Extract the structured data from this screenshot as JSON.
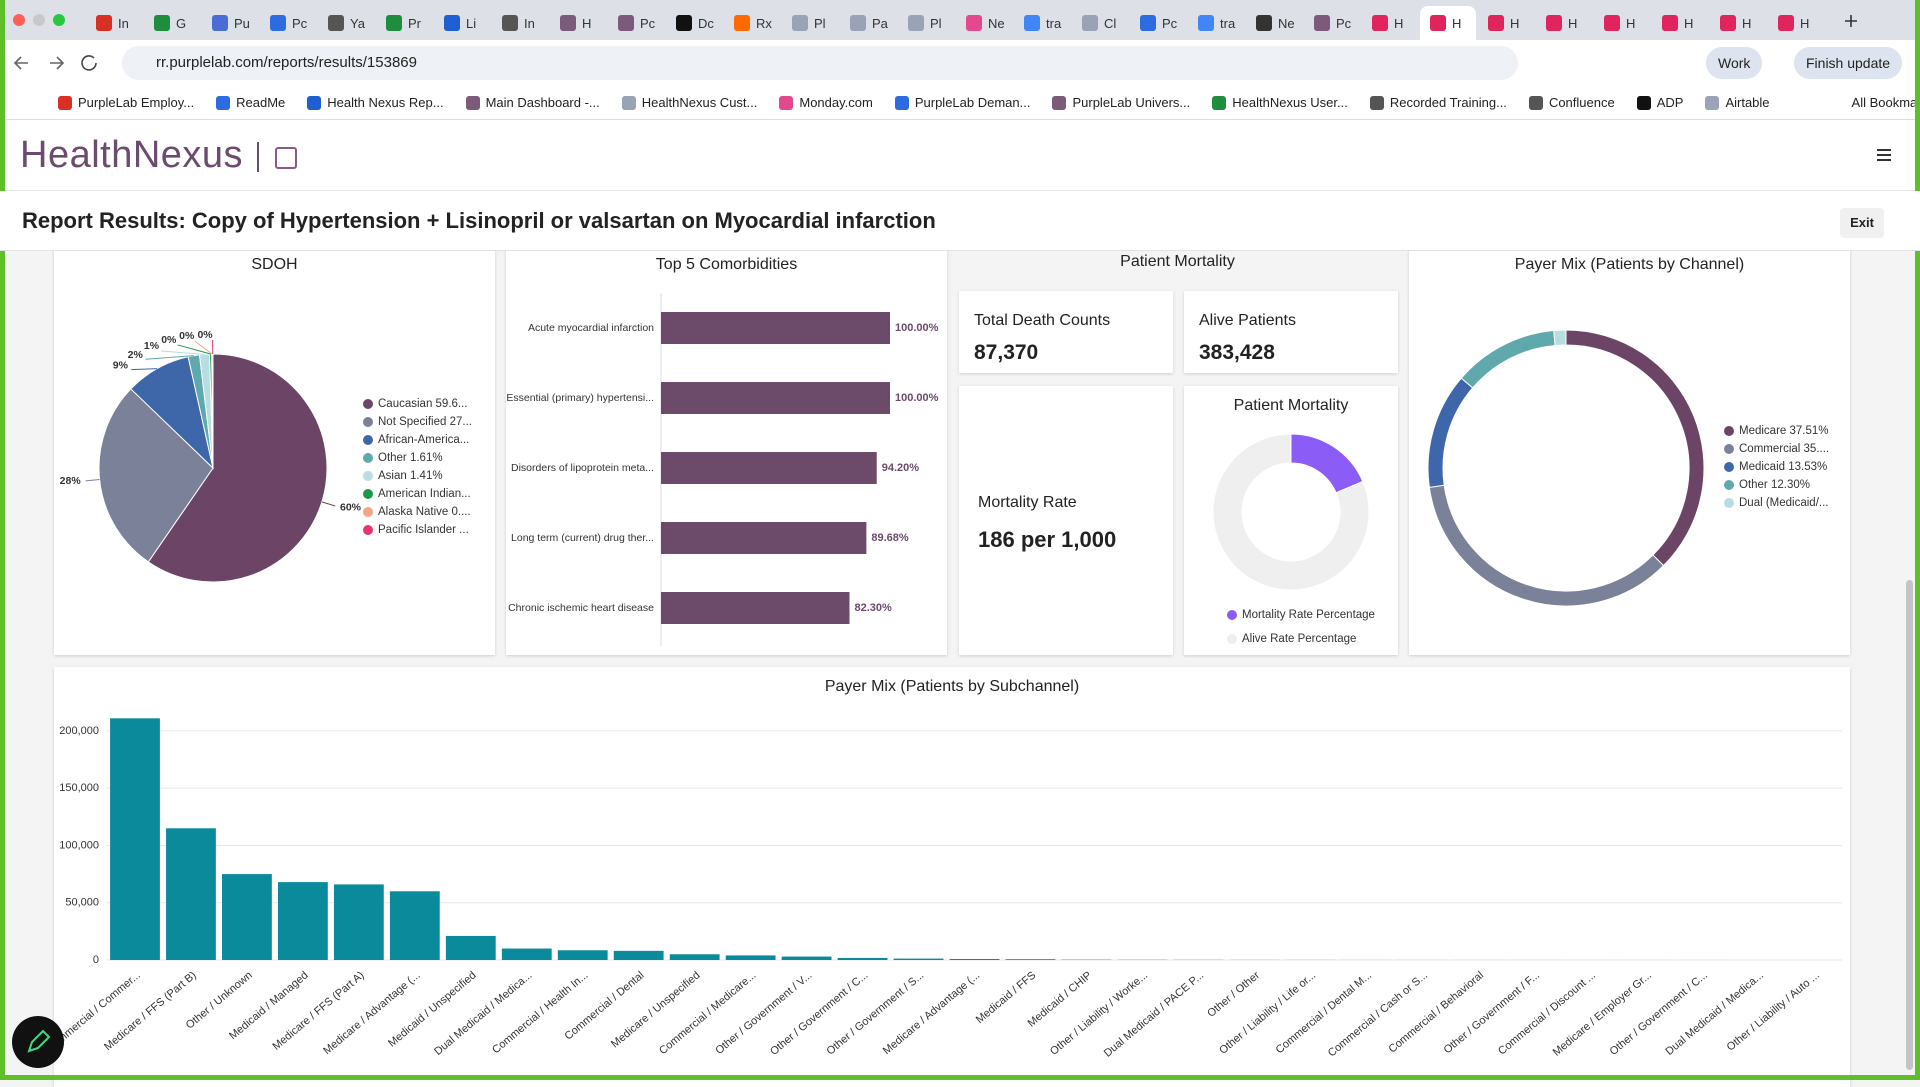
{
  "browser": {
    "tabs": [
      "In",
      "G",
      "Pu",
      "Pc",
      "Ya",
      "Pr",
      "Li",
      "In",
      "H",
      "Pc",
      "Dc",
      "Rx",
      "Pl",
      "Pa",
      "Pl",
      "Ne",
      "tra",
      "Cl",
      "Pc",
      "tra",
      "Ne",
      "Pc",
      "H",
      "H",
      "H",
      "H",
      "H",
      "H",
      "H",
      "H"
    ],
    "active_tab": 23,
    "url": "rr.purplelab.com/reports/results/153869",
    "profile": "Work",
    "update_button": "Finish update",
    "bookmarks": [
      "PurpleLab Employ...",
      "ReadMe",
      "Health Nexus Rep...",
      "Main Dashboard -...",
      "HealthNexus Cust...",
      "Monday.com",
      "PurpleLab Deman...",
      "PurpleLab Univers...",
      "HealthNexus User...",
      "Recorded Training...",
      "Confluence",
      "ADP",
      "Airtable"
    ],
    "all_bookmarks": "All Bookmarks"
  },
  "app": {
    "logo": "HealthNexus",
    "report_title": "Report Results: Copy of Hypertension + Lisinopril or valsartan on Myocardial infarction",
    "exit": "Exit"
  },
  "mortality_stats": {
    "title": "Patient Mortality",
    "cards": [
      {
        "label": "Total Death Counts",
        "value": "87,370"
      },
      {
        "label": "Alive Patients",
        "value": "383,428"
      },
      {
        "label": "Mortality Rate",
        "value": "186 per 1,000"
      }
    ]
  },
  "chart_data": [
    {
      "type": "pie",
      "title": "SDOH",
      "categories": [
        "Caucasian 59.6...",
        "Not Specified 27...",
        "African-America...",
        "Other 1.61%",
        "Asian 1.41%",
        "American Indian...",
        "Alaska Native 0....",
        "Pacific Islander ..."
      ],
      "values": [
        59.6,
        27.6,
        9.3,
        1.61,
        1.41,
        0.3,
        0.1,
        0.08
      ],
      "value_labels": [
        "60%",
        "28%",
        "9%",
        "2%",
        "1%",
        "0%",
        "0%",
        "0%"
      ],
      "colors": [
        "#6b4466",
        "#7a8199",
        "#3d67a8",
        "#5fa9ad",
        "#b7dde0",
        "#1a9850",
        "#f4a582",
        "#e8336d"
      ]
    },
    {
      "type": "bar",
      "orientation": "horizontal",
      "title": "Top 5 Comorbidities",
      "categories": [
        "Acute myocardial infarction",
        "Essential (primary) hypertensi...",
        "Disorders of lipoprotein meta...",
        "Long term (current) drug ther...",
        "Chronic ischemic heart disease"
      ],
      "values": [
        100,
        100,
        94.2,
        89.68,
        82.3
      ],
      "value_labels": [
        "100.00%",
        "100.00%",
        "94.20%",
        "89.68%",
        "82.30%"
      ],
      "color": "#6b4a6a",
      "xlim": [
        0,
        100
      ]
    },
    {
      "type": "donut",
      "title": "Patient Mortality",
      "categories": [
        "Mortality Rate Percentage",
        "Alive Rate Percentage"
      ],
      "values": [
        18.6,
        81.4
      ],
      "colors": [
        "#8b5cf6",
        "#efefef"
      ]
    },
    {
      "type": "donut",
      "title": "Payer Mix (Patients by Channel)",
      "categories": [
        "Medicare 37.51%",
        "Commercial 35....",
        "Medicaid 13.53%",
        "Other 12.30%",
        "Dual (Medicaid/..."
      ],
      "values": [
        37.51,
        35.25,
        13.53,
        12.3,
        1.41
      ],
      "colors": [
        "#6b4466",
        "#7a8199",
        "#3d67a8",
        "#5fa9ad",
        "#b7dde0"
      ]
    },
    {
      "type": "bar",
      "orientation": "vertical",
      "title": "Payer Mix (Patients by Subchannel)",
      "categories": [
        "Commercial / Commer...",
        "Medicare / FFS (Part B)",
        "Other / Unknown",
        "Medicaid / Managed",
        "Medicare / FFS (Part A)",
        "Medicare / Advantage (...",
        "Medicaid / Unspecified",
        "Dual Medicaid / Medica...",
        "Commercial / Health In...",
        "Commercial / Dental",
        "Medicare / Unspecified",
        "Commercial / Medicare...",
        "Other / Government / V...",
        "Other / Government / C...",
        "Other / Government / S...",
        "Medicare / Advantage (...",
        "Medicaid / FFS",
        "Medicaid / CHIP",
        "Other / Liability / Worke...",
        "Dual Medicaid / PACE P...",
        "Other / Other",
        "Other / Liability / Life or...",
        "Commercial / Dental M...",
        "Commercial / Cash or S...",
        "Commercial / Behavioral",
        "Other / Government / F...",
        "Commercial / Discount ...",
        "Medicare / Employer Gr...",
        "Other / Government / C...",
        "Dual Medicaid / Medica...",
        "Other / Liability / Auto ..."
      ],
      "values": [
        211000,
        115000,
        75000,
        68000,
        66000,
        60000,
        21000,
        10000,
        8500,
        8000,
        5000,
        4000,
        3000,
        1800,
        1200,
        900,
        700,
        300,
        200,
        150,
        100,
        80,
        60,
        50,
        40,
        30,
        20,
        15,
        10,
        5,
        2
      ],
      "color": "#0b8a9c",
      "ylim": [
        0,
        220000
      ],
      "yticks": [
        0,
        {
          "value": 50000,
          "label": "50,000"
        },
        {
          "value": 100000,
          "label": "100,000"
        },
        {
          "value": 150000,
          "label": "150,000"
        },
        {
          "value": 200000,
          "label": "200,000"
        }
      ],
      "grid": true
    }
  ]
}
